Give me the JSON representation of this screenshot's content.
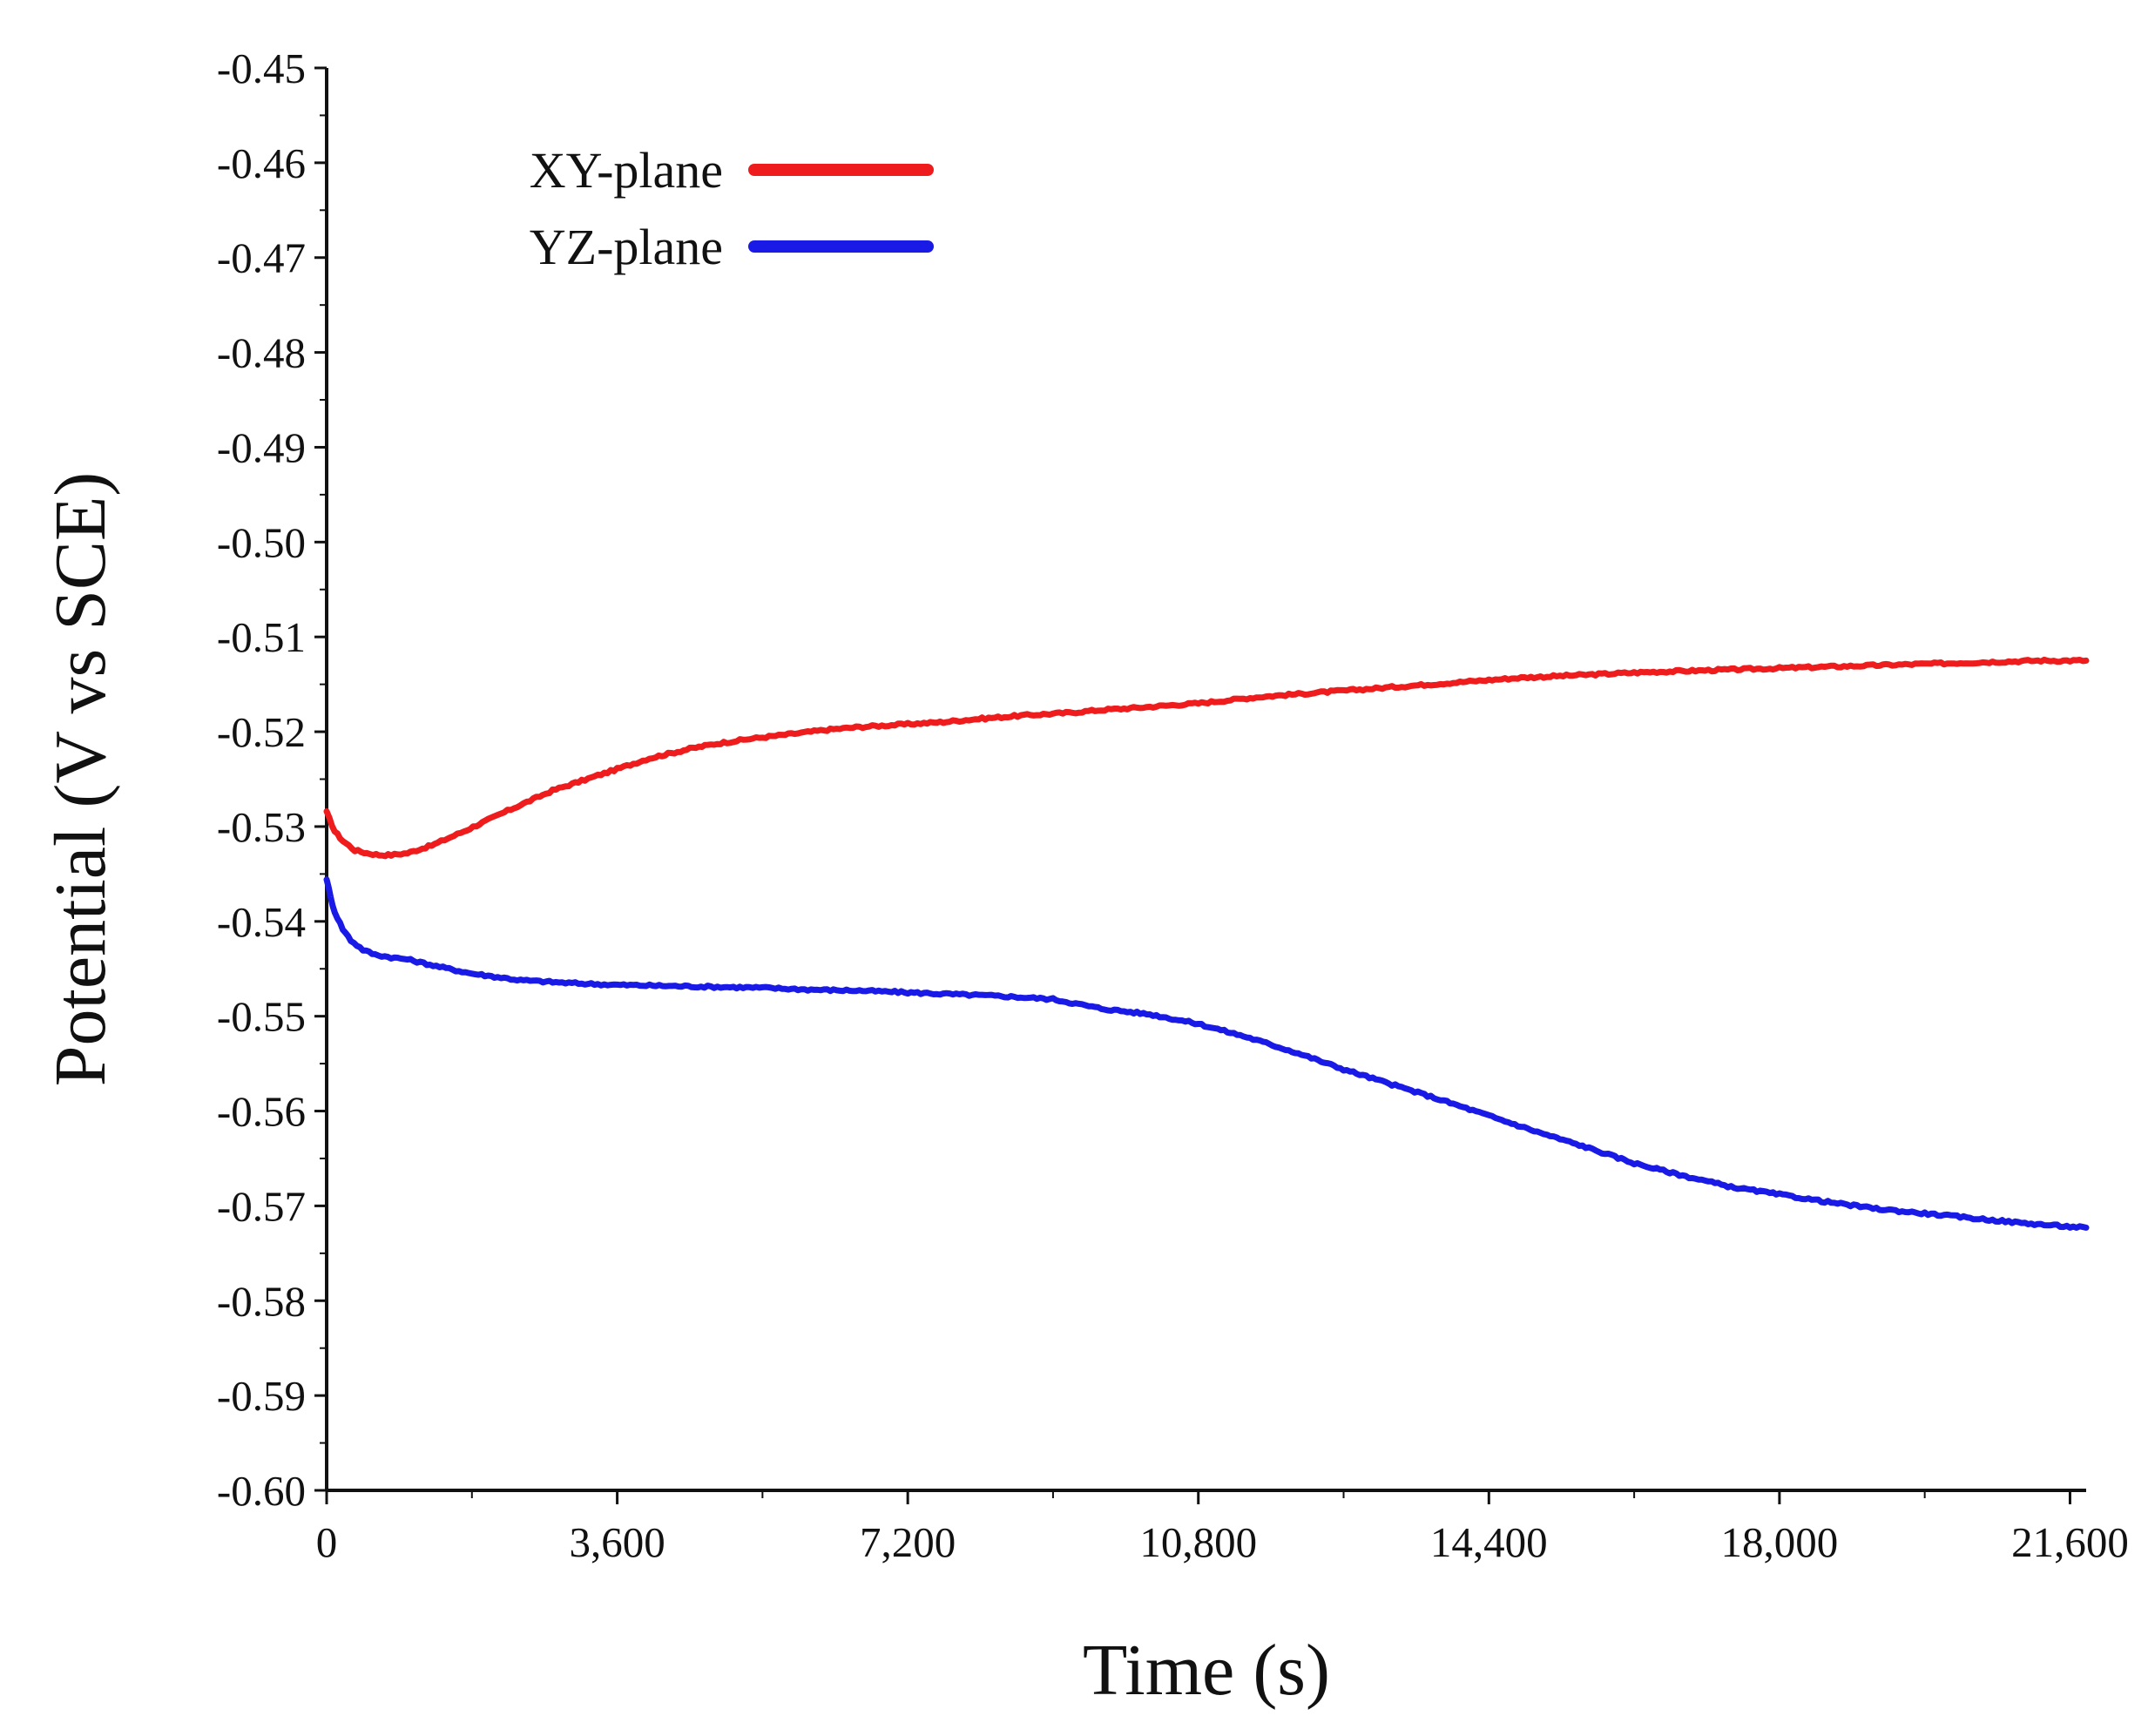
{
  "chart_data": {
    "type": "line",
    "title": "",
    "xlabel": "Time (s)",
    "ylabel": "Potential (V vs SCE)",
    "xlim": [
      0,
      21800
    ],
    "ylim": [
      -0.6,
      -0.45
    ],
    "grid": false,
    "legend_position": "top-left",
    "x_ticks": [
      0,
      3600,
      7200,
      10800,
      14400,
      18000,
      21600
    ],
    "x_tick_labels": [
      "0",
      "3,600",
      "7,200",
      "10,800",
      "14,400",
      "18,000",
      "21,600"
    ],
    "y_ticks": [
      -0.45,
      -0.46,
      -0.47,
      -0.48,
      -0.49,
      -0.5,
      -0.51,
      -0.52,
      -0.53,
      -0.54,
      -0.55,
      -0.56,
      -0.57,
      -0.58,
      -0.59,
      -0.6
    ],
    "y_tick_labels": [
      "-0.45",
      "-0.46",
      "-0.47",
      "-0.48",
      "-0.49",
      "-0.50",
      "-0.51",
      "-0.52",
      "-0.53",
      "-0.54",
      "-0.55",
      "-0.56",
      "-0.57",
      "-0.58",
      "-0.59",
      "-0.60"
    ],
    "series": [
      {
        "name": "XY-plane",
        "color": "#ee1c1c",
        "x": [
          0,
          100,
          200,
          350,
          500,
          650,
          800,
          1000,
          1300,
          1700,
          2200,
          2800,
          3400,
          4000,
          4500,
          4800,
          5200,
          5800,
          6200,
          6600,
          7200,
          7600,
          8000,
          8600,
          9200,
          9600,
          10000,
          10800,
          11600,
          12400,
          13200,
          14000,
          14800,
          15600,
          16400,
          17200,
          18000,
          18800,
          19600,
          20400,
          21200,
          21800
        ],
        "y": [
          -0.5285,
          -0.5305,
          -0.5315,
          -0.5325,
          -0.5328,
          -0.533,
          -0.533,
          -0.5328,
          -0.532,
          -0.5305,
          -0.5285,
          -0.5262,
          -0.5245,
          -0.5228,
          -0.5218,
          -0.5213,
          -0.5208,
          -0.5202,
          -0.5198,
          -0.5195,
          -0.5192,
          -0.519,
          -0.5187,
          -0.5183,
          -0.518,
          -0.5177,
          -0.5175,
          -0.517,
          -0.5163,
          -0.5158,
          -0.5153,
          -0.5148,
          -0.5143,
          -0.514,
          -0.5137,
          -0.5135,
          -0.5133,
          -0.5131,
          -0.5129,
          -0.5127,
          -0.5125,
          -0.5125
        ]
      },
      {
        "name": "YZ-plane",
        "color": "#1a1ae6",
        "x": [
          0,
          50,
          100,
          200,
          300,
          450,
          600,
          800,
          1000,
          1400,
          1800,
          2400,
          3000,
          3600,
          4200,
          4800,
          5400,
          6000,
          6600,
          7200,
          7800,
          8400,
          9000,
          9600,
          10200,
          10800,
          11400,
          12000,
          12600,
          13200,
          13800,
          14400,
          15000,
          15600,
          16200,
          16800,
          17400,
          18000,
          18600,
          19200,
          19800,
          20400,
          21000,
          21600,
          21800
        ],
        "y": [
          -0.5355,
          -0.5375,
          -0.539,
          -0.5408,
          -0.542,
          -0.543,
          -0.5435,
          -0.5438,
          -0.544,
          -0.5448,
          -0.5455,
          -0.5462,
          -0.5465,
          -0.5467,
          -0.5468,
          -0.5469,
          -0.547,
          -0.5472,
          -0.5473,
          -0.5475,
          -0.5477,
          -0.5479,
          -0.5482,
          -0.5492,
          -0.5498,
          -0.5508,
          -0.5522,
          -0.5538,
          -0.5556,
          -0.5572,
          -0.5588,
          -0.5605,
          -0.5622,
          -0.5638,
          -0.5655,
          -0.5668,
          -0.568,
          -0.5688,
          -0.5696,
          -0.5703,
          -0.5708,
          -0.5713,
          -0.5718,
          -0.5722,
          -0.5723
        ]
      }
    ]
  }
}
